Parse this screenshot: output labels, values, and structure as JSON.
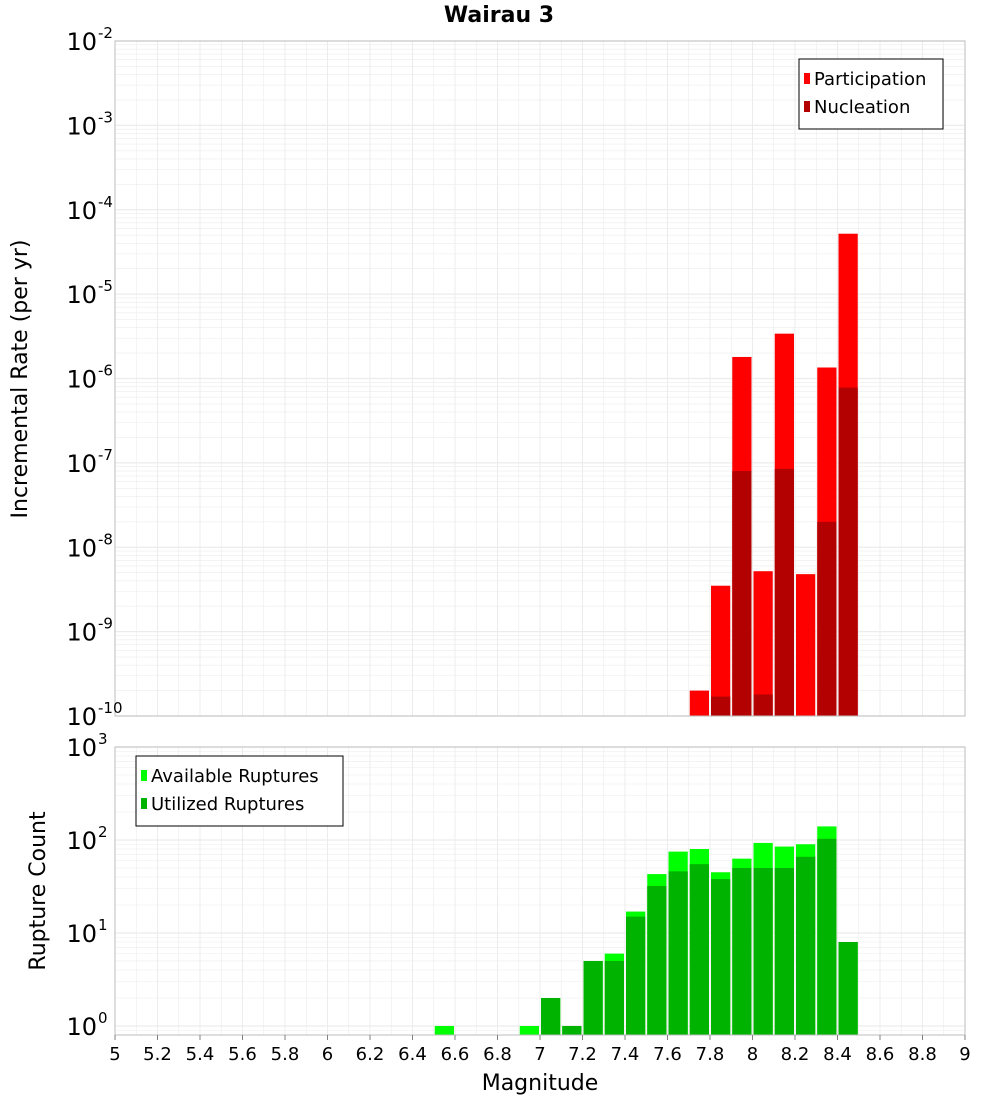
{
  "title": "Wairau 3",
  "colors": {
    "participation": "#ff0000",
    "nucleation": "#b30000",
    "available": "#00ff00",
    "utilized": "#00b300",
    "grid": "#ececec",
    "frame": "#bdbdbd"
  },
  "chart_data": [
    {
      "type": "bar",
      "panel": "top",
      "ylabel": "Incremental Rate (per yr)",
      "yscale": "log",
      "ylim": [
        1e-10,
        0.01
      ],
      "y_ticks": [
        {
          "base": "10",
          "exp": "-2"
        },
        {
          "base": "10",
          "exp": "-3"
        },
        {
          "base": "10",
          "exp": "-4"
        },
        {
          "base": "10",
          "exp": "-5"
        },
        {
          "base": "10",
          "exp": "-6"
        },
        {
          "base": "10",
          "exp": "-7"
        },
        {
          "base": "10",
          "exp": "-8"
        },
        {
          "base": "10",
          "exp": "-9"
        },
        {
          "base": "10",
          "exp": "-10"
        }
      ],
      "legend": [
        "Participation",
        "Nucleation"
      ],
      "legend_position": "top-right",
      "grid": true,
      "bin_width": 0.1,
      "series": [
        {
          "name": "Participation",
          "color": "#ff0000",
          "x": [
            7.75,
            7.85,
            7.95,
            8.05,
            8.15,
            8.25,
            8.35,
            8.45
          ],
          "values": [
            2e-10,
            3.5e-09,
            1.8e-06,
            5.2e-09,
            3.4e-06,
            4.8e-09,
            1.35e-06,
            5.2e-05
          ]
        },
        {
          "name": "Nucleation",
          "color": "#b30000",
          "x": [
            7.85,
            7.95,
            8.05,
            8.15,
            8.35,
            8.45
          ],
          "values": [
            1.7e-10,
            8e-08,
            1.8e-10,
            8.5e-08,
            2e-08,
            7.8e-07
          ]
        }
      ]
    },
    {
      "type": "bar",
      "panel": "bottom",
      "xlabel": "Magnitude",
      "ylabel": "Rupture Count",
      "yscale": "log",
      "ylim": [
        0.8,
        1000
      ],
      "y_ticks": [
        {
          "value": 1000,
          "base": "10",
          "exp": "3"
        },
        {
          "value": 100,
          "base": "10",
          "exp": "2"
        },
        {
          "value": 10,
          "base": "10",
          "exp": "1"
        },
        {
          "value": 1,
          "base": "10",
          "exp": "0"
        }
      ],
      "xlim": [
        5,
        9
      ],
      "x_ticks": [
        "5",
        "5.2",
        "5.4",
        "5.6",
        "5.8",
        "6",
        "6.2",
        "6.4",
        "6.6",
        "6.8",
        "7",
        "7.2",
        "7.4",
        "7.6",
        "7.8",
        "8",
        "8.2",
        "8.4",
        "8.6",
        "8.8",
        "9"
      ],
      "legend": [
        "Available Ruptures",
        "Utilized Ruptures"
      ],
      "legend_position": "top-left",
      "grid": true,
      "bin_width": 0.1,
      "series": [
        {
          "name": "Available Ruptures",
          "color": "#00ff00",
          "x": [
            6.55,
            6.95,
            7.05,
            7.15,
            7.25,
            7.35,
            7.45,
            7.55,
            7.65,
            7.75,
            7.85,
            7.95,
            8.05,
            8.15,
            8.25,
            8.35,
            8.45
          ],
          "values": [
            1,
            1,
            2,
            1,
            5,
            6,
            17,
            43,
            75,
            80,
            45,
            63,
            93,
            85,
            90,
            140,
            8
          ]
        },
        {
          "name": "Utilized Ruptures",
          "color": "#00b300",
          "x": [
            7.05,
            7.15,
            7.25,
            7.35,
            7.45,
            7.55,
            7.65,
            7.75,
            7.85,
            7.95,
            8.05,
            8.15,
            8.25,
            8.35,
            8.45
          ],
          "values": [
            2,
            1,
            5,
            5,
            15,
            32,
            46,
            55,
            38,
            50,
            50,
            50,
            66,
            103,
            8
          ]
        }
      ]
    }
  ]
}
